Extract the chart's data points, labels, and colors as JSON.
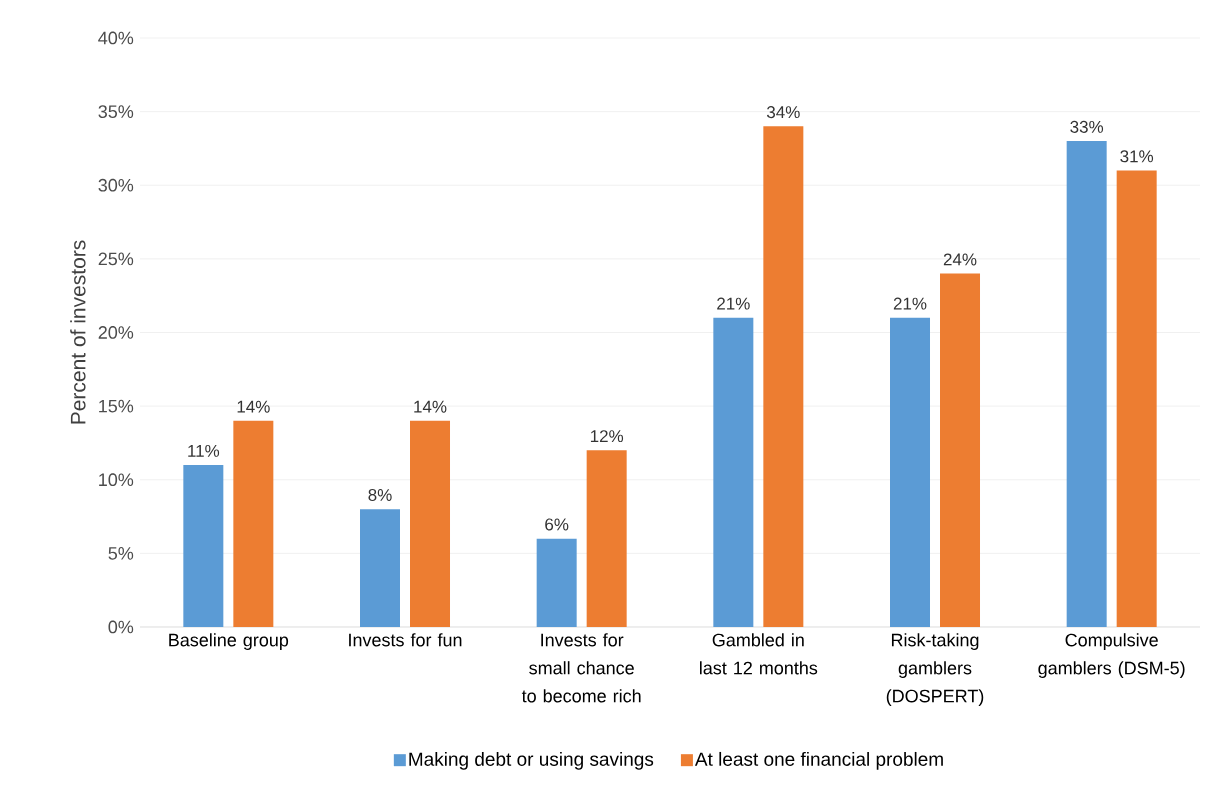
{
  "chart_data": {
    "type": "bar",
    "ylabel": "Percent of investors",
    "categories": [
      "Baseline group",
      "Invests for fun",
      "Invests for small chance to become rich",
      "Gambled in last 12 months",
      "Risk-taking gamblers (DOSPERT)",
      "Compulsive gamblers (DSM-5)"
    ],
    "series": [
      {
        "name": "Making debt or using savings",
        "color": "#5b9bd5",
        "values": [
          11,
          8,
          6,
          21,
          21,
          33
        ],
        "value_labels": [
          "11%",
          "8%",
          "6%",
          "21%",
          "21%",
          "33%"
        ]
      },
      {
        "name": "At least one financial problem",
        "color": "#ed7d31",
        "values": [
          14,
          14,
          12,
          34,
          24,
          31
        ],
        "value_labels": [
          "14%",
          "14%",
          "12%",
          "34%",
          "24%",
          "31%"
        ]
      }
    ],
    "ylim": [
      0,
      40
    ],
    "yticks": [
      {
        "value": 0,
        "label": "0%"
      },
      {
        "value": 5,
        "label": "5%"
      },
      {
        "value": 10,
        "label": "10%"
      },
      {
        "value": 15,
        "label": "15%"
      },
      {
        "value": 20,
        "label": "20%"
      },
      {
        "value": 25,
        "label": "25%"
      },
      {
        "value": 30,
        "label": "30%"
      },
      {
        "value": 35,
        "label": "35%"
      },
      {
        "value": 40,
        "label": "40%"
      }
    ],
    "grid": "y",
    "legend": "bottom"
  }
}
